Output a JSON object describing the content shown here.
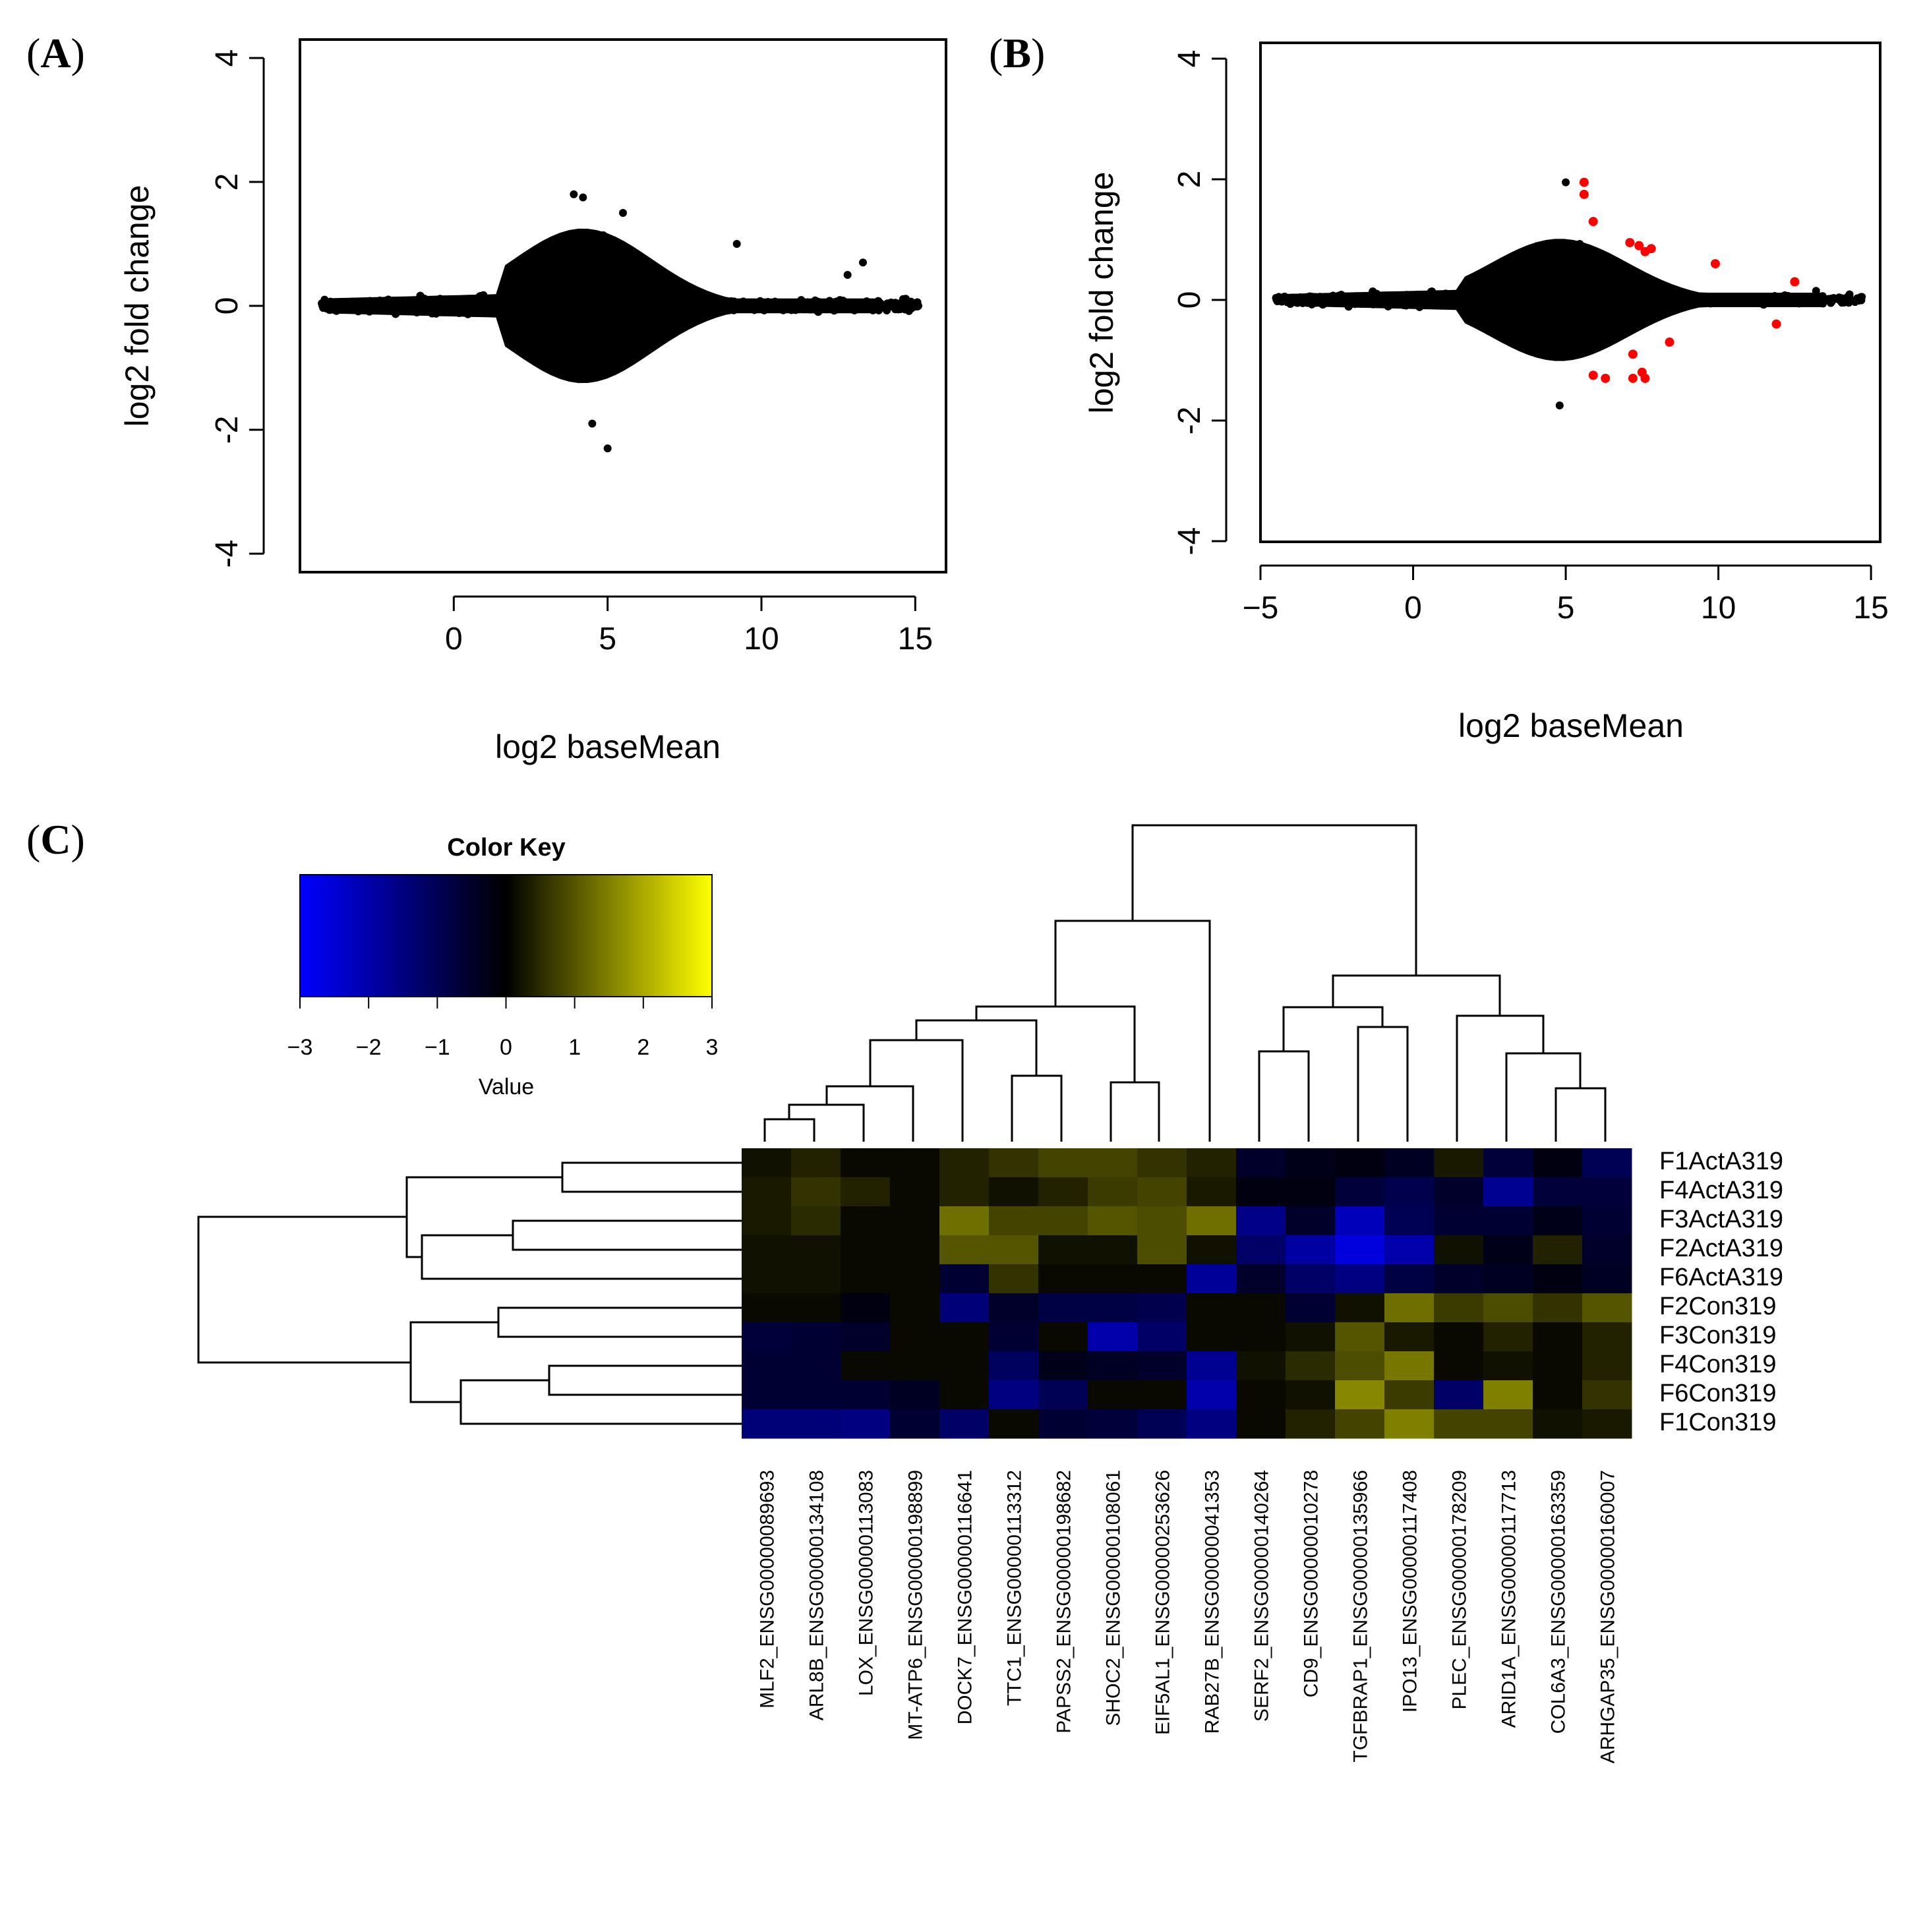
{
  "panels": {
    "A": {
      "label_open": "(",
      "label": "A",
      "label_close": ")"
    },
    "B": {
      "label_open": "(",
      "label": "B",
      "label_close": ")"
    },
    "C": {
      "label_open": "(",
      "label": "C",
      "label_close": ")"
    }
  },
  "colors": {
    "black": "#000000",
    "significant": "#ff0000",
    "low": "#0000ff",
    "mid": "#000000",
    "high": "#ffff00"
  },
  "chart_data": [
    {
      "id": "A",
      "type": "scatter",
      "title": "",
      "xlabel": "log2 baseMean",
      "ylabel": "log2 fold change",
      "xlim": [
        -5,
        16
      ],
      "ylim": [
        -4.3,
        4.3
      ],
      "xticks": [
        "0",
        "5",
        "10",
        "15"
      ],
      "xtick_values": [
        0,
        5,
        10,
        15
      ],
      "yticks": [
        "-4",
        "-2",
        "0",
        "2",
        "4"
      ],
      "ytick_values": [
        -4,
        -2,
        0,
        2,
        4
      ],
      "cloud": {
        "x_min": -4.3,
        "x_max": 15.1,
        "peak_x": 4.2,
        "spread_at_peak": 1.6,
        "spread_at_ends": 0.15
      },
      "outliers": [
        [
          3.9,
          1.8
        ],
        [
          4.2,
          1.75
        ],
        [
          5.0,
          -2.3
        ],
        [
          9.2,
          1.0
        ],
        [
          12.8,
          0.5
        ],
        [
          13.3,
          0.7
        ],
        [
          14.7,
          0.05
        ],
        [
          15.1,
          0.0
        ],
        [
          -4.2,
          0.1
        ],
        [
          5.5,
          1.5
        ],
        [
          4.5,
          -1.9
        ]
      ],
      "highlighted": []
    },
    {
      "id": "B",
      "type": "scatter",
      "title": "",
      "xlabel": "log2 baseMean",
      "ylabel": "log2 fold change",
      "xlim": [
        -5,
        15.3
      ],
      "ylim": [
        -4.3,
        4.3
      ],
      "xticks": [
        "−5",
        "0",
        "5",
        "10",
        "15"
      ],
      "xtick_values": [
        -5,
        0,
        5,
        10,
        15
      ],
      "yticks": [
        "-4",
        "-2",
        "0",
        "2",
        "4"
      ],
      "ytick_values": [
        -4,
        -2,
        0,
        2,
        4
      ],
      "cloud": {
        "x_min": -4.5,
        "x_max": 14.7,
        "peak_x": 4.8,
        "spread_at_peak": 1.3,
        "spread_at_ends": 0.12
      },
      "outliers": [
        [
          5.0,
          1.95
        ],
        [
          4.8,
          -1.75
        ],
        [
          14.7,
          0.05
        ],
        [
          13.2,
          0.15
        ],
        [
          -4.4,
          0.05
        ]
      ],
      "highlighted": [
        [
          5.6,
          1.95
        ],
        [
          5.6,
          1.75
        ],
        [
          5.9,
          1.3
        ],
        [
          7.1,
          0.95
        ],
        [
          7.4,
          0.9
        ],
        [
          7.6,
          0.8
        ],
        [
          7.8,
          0.85
        ],
        [
          9.9,
          0.6
        ],
        [
          12.5,
          0.3
        ],
        [
          11.9,
          -0.4
        ],
        [
          8.4,
          -0.7
        ],
        [
          7.2,
          -0.9
        ],
        [
          5.9,
          -1.25
        ],
        [
          6.3,
          -1.3
        ],
        [
          7.2,
          -1.3
        ],
        [
          7.6,
          -1.3
        ],
        [
          7.5,
          -1.2
        ]
      ]
    },
    {
      "id": "C",
      "type": "heatmap",
      "title": "",
      "color_key": {
        "title": "Color Key",
        "xlabel": "Value",
        "range": [
          -3,
          3
        ],
        "ticks": [
          "−3",
          "−2",
          "−1",
          "0",
          "1",
          "2",
          "3"
        ]
      },
      "columns": [
        "MLF2_ENSG00000089693",
        "ARL8B_ENSG00000134108",
        "LOX_ENSG00000113083",
        "MT-ATP6_ENSG00000198899",
        "DOCK7_ENSG00000116641",
        "TTC1_ENSG00000113312",
        "PAPSS2_ENSG00000198682",
        "SHOC2_ENSG00000108061",
        "EIF5AL1_ENSG00000253626",
        "RAB27B_ENSG00000041353",
        "SERF2_ENSG00000140264",
        "CD9_ENSG00000010278",
        "TGFBRAP1_ENSG00000135966",
        "IPO13_ENSG00000117408",
        "PLEC_ENSG00000178209",
        "ARID1A_ENSG00000117713",
        "COL6A3_ENSG00000163359",
        "ARHGAP35_ENSG00000160007"
      ],
      "rows": [
        "F1ActA319",
        "F4ActA319",
        "F3ActA319",
        "F2ActA319",
        "F6ActA319",
        "F2Con319",
        "F3Con319",
        "F4Con319",
        "F6Con319",
        "F1Con319"
      ],
      "values": [
        [
          0.2,
          0.4,
          0.1,
          0.1,
          0.4,
          0.6,
          0.8,
          0.8,
          0.6,
          0.4,
          -0.5,
          -0.3,
          -0.2,
          -0.4,
          0.3,
          -0.7,
          -0.2,
          -1.0
        ],
        [
          0.3,
          0.6,
          0.4,
          0.1,
          0.4,
          0.2,
          0.4,
          0.7,
          0.8,
          0.3,
          -0.2,
          -0.2,
          -0.7,
          -0.9,
          -0.5,
          -1.7,
          -0.7,
          -0.7
        ],
        [
          0.3,
          0.5,
          0.1,
          0.1,
          1.3,
          0.8,
          0.8,
          1.0,
          0.9,
          1.3,
          -1.6,
          -0.5,
          -2.2,
          -1.0,
          -0.6,
          -0.6,
          -0.3,
          -0.6
        ],
        [
          0.2,
          0.2,
          0.1,
          0.1,
          1.0,
          1.0,
          0.2,
          0.2,
          0.9,
          0.2,
          -1.2,
          -1.9,
          -2.6,
          -2.0,
          0.2,
          -0.3,
          0.4,
          -0.5
        ],
        [
          0.2,
          0.2,
          0.1,
          0.1,
          -0.6,
          0.6,
          0.1,
          0.1,
          0.1,
          -1.8,
          -0.5,
          -1.2,
          -1.5,
          -0.8,
          -0.5,
          -0.4,
          -0.2,
          -0.4
        ],
        [
          0.1,
          0.1,
          -0.2,
          0.1,
          -1.4,
          -0.5,
          -0.8,
          -0.8,
          -0.9,
          0.1,
          0.1,
          -0.6,
          0.2,
          1.3,
          0.7,
          0.9,
          0.6,
          1.0
        ],
        [
          -0.7,
          -0.6,
          -0.5,
          0.1,
          0.1,
          -0.6,
          0.1,
          -2.0,
          -1.2,
          0.1,
          0.1,
          0.2,
          1.0,
          0.3,
          0.1,
          0.4,
          0.1,
          0.4
        ],
        [
          -0.6,
          -0.6,
          0.1,
          0.1,
          0.1,
          -1.1,
          -0.3,
          -0.4,
          -0.5,
          -1.7,
          0.2,
          0.5,
          0.9,
          1.4,
          0.1,
          0.2,
          0.1,
          0.4
        ],
        [
          -0.6,
          -0.6,
          -0.6,
          -0.4,
          0.1,
          -1.5,
          -1.0,
          0.1,
          0.1,
          -2.0,
          0.1,
          0.2,
          1.6,
          0.7,
          -1.2,
          1.5,
          0.1,
          0.6
        ],
        [
          -1.4,
          -1.4,
          -1.5,
          -0.6,
          -1.2,
          0.1,
          -0.6,
          -0.7,
          -1.0,
          -1.5,
          0.1,
          0.4,
          0.8,
          1.5,
          0.8,
          0.8,
          0.2,
          0.3
        ]
      ]
    }
  ]
}
